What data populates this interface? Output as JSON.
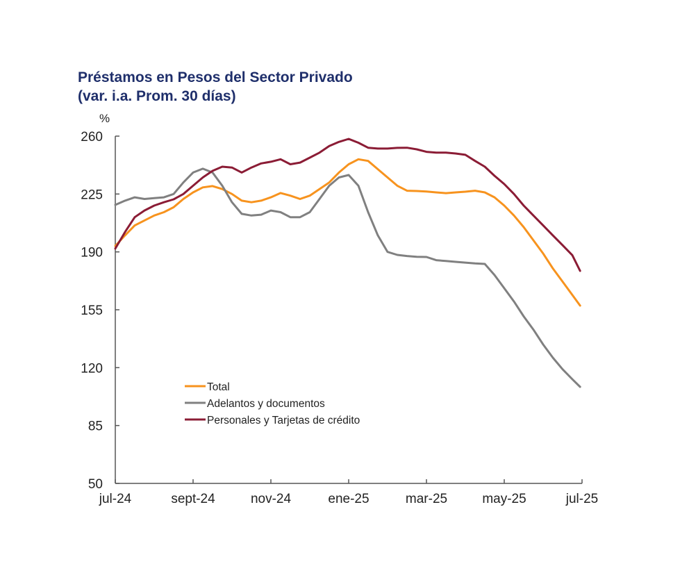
{
  "chart_data": {
    "type": "line",
    "title": "Préstamos en Pesos del Sector Privado",
    "subtitle": "(var. i.a. Prom. 30 días)",
    "ylabel": "%",
    "xlabel": "",
    "ylim": [
      50,
      260
    ],
    "yticks": [
      50,
      85,
      120,
      155,
      190,
      225,
      260
    ],
    "xlim": [
      0,
      12
    ],
    "xticks": [
      {
        "pos": 0,
        "label": "jul-24"
      },
      {
        "pos": 2,
        "label": "sept-24"
      },
      {
        "pos": 4,
        "label": "nov-24"
      },
      {
        "pos": 6,
        "label": "ene-25"
      },
      {
        "pos": 8,
        "label": "mar-25"
      },
      {
        "pos": 10,
        "label": "may-25"
      },
      {
        "pos": 12,
        "label": "jul-25"
      }
    ],
    "x_unit": "months since jul-24",
    "legend_position": "lower-left-center",
    "series": [
      {
        "name": "Total",
        "color": "#f7931e",
        "x": [
          0,
          0.25,
          0.5,
          0.75,
          1,
          1.25,
          1.5,
          1.75,
          2,
          2.25,
          2.5,
          2.75,
          3,
          3.25,
          3.5,
          3.75,
          4,
          4.25,
          4.5,
          4.75,
          5,
          5.25,
          5.5,
          5.75,
          6,
          6.25,
          6.5,
          6.75,
          7,
          7.25,
          7.5,
          7.75,
          8,
          8.25,
          8.5,
          8.75,
          9,
          9.25,
          9.5,
          9.75,
          10,
          10.25,
          10.5,
          10.75,
          11,
          11.25,
          11.5,
          11.75,
          11.95
        ],
        "values": [
          193.6,
          200,
          206,
          209,
          212,
          214,
          217,
          222,
          226,
          229,
          229.8,
          228,
          225,
          221,
          220,
          221,
          223,
          225.6,
          224,
          222,
          224,
          228,
          232,
          238,
          243,
          246,
          245,
          240,
          235,
          230,
          227,
          226.8,
          226.5,
          226,
          225.5,
          226,
          226.4,
          227,
          226,
          223,
          218,
          212,
          205,
          197,
          189,
          180,
          172,
          164,
          157.5
        ]
      },
      {
        "name": "Adelantos y documentos",
        "color": "#808080",
        "x": [
          0,
          0.25,
          0.5,
          0.75,
          1,
          1.25,
          1.5,
          1.75,
          2,
          2.25,
          2.5,
          2.75,
          3,
          3.25,
          3.5,
          3.75,
          4,
          4.25,
          4.5,
          4.75,
          5,
          5.25,
          5.5,
          5.75,
          6,
          6.25,
          6.5,
          6.75,
          7,
          7.25,
          7.5,
          7.75,
          8,
          8.25,
          8.5,
          8.75,
          9,
          9.25,
          9.5,
          9.75,
          10,
          10.25,
          10.5,
          10.75,
          11,
          11.25,
          11.5,
          11.75,
          11.95
        ],
        "values": [
          218.4,
          221,
          223,
          222,
          222.5,
          223,
          225,
          232,
          238,
          240.3,
          238,
          230,
          220,
          213,
          212,
          212.5,
          215,
          214,
          211,
          211,
          214,
          222,
          230,
          235,
          236.5,
          230,
          214,
          200,
          190,
          188.2,
          187.5,
          187,
          186.9,
          185,
          184.5,
          184,
          183.5,
          183,
          182.7,
          176,
          168,
          160,
          151,
          143,
          134,
          126,
          119,
          113,
          108.4
        ]
      },
      {
        "name": "Personales y Tarjetas de crédito",
        "color": "#8b1c35",
        "x": [
          0,
          0.25,
          0.5,
          0.75,
          1,
          1.25,
          1.5,
          1.75,
          2,
          2.25,
          2.5,
          2.75,
          3,
          3.25,
          3.5,
          3.75,
          4,
          4.25,
          4.5,
          4.75,
          5,
          5.25,
          5.5,
          5.75,
          6,
          6.25,
          6.5,
          6.75,
          7,
          7.25,
          7.5,
          7.75,
          8,
          8.25,
          8.5,
          8.75,
          9,
          9.25,
          9.5,
          9.75,
          10,
          10.25,
          10.5,
          10.75,
          11,
          11.25,
          11.5,
          11.75,
          11.95
        ],
        "values": [
          192,
          202,
          211,
          215,
          218,
          220,
          221.8,
          225,
          230,
          235,
          239,
          241.5,
          241,
          238,
          241,
          243.5,
          244.5,
          246,
          243,
          244,
          247,
          250,
          254,
          256.5,
          258.3,
          256,
          253,
          252.5,
          252.5,
          252.9,
          253,
          252,
          250.5,
          250,
          250,
          249.5,
          248.7,
          245,
          241.5,
          236,
          231,
          225,
          218,
          212,
          206,
          200,
          194,
          188,
          178.5
        ]
      }
    ]
  }
}
